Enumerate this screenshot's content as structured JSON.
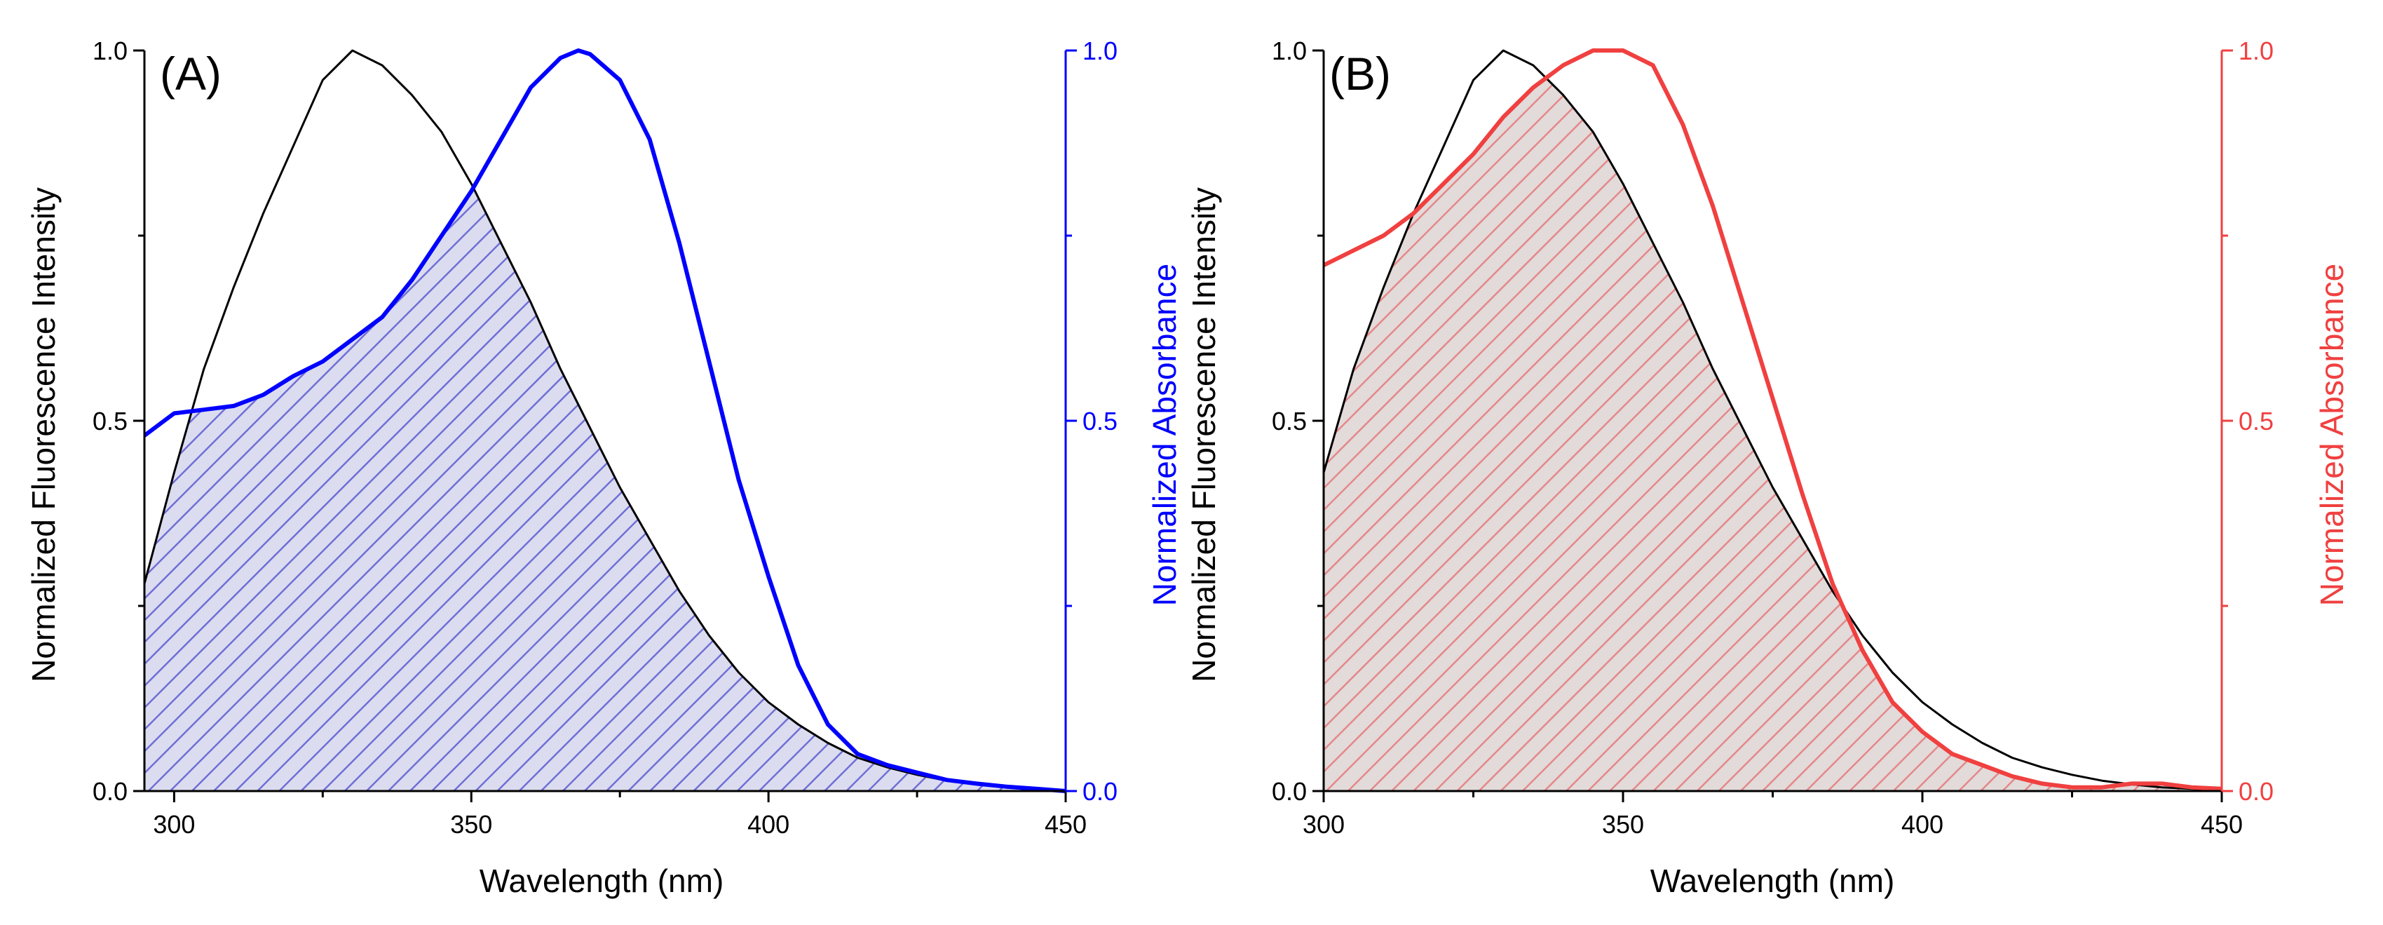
{
  "chart_data": [
    {
      "type": "line",
      "panel_label": "(A)",
      "xlabel": "Wavelength  (nm)",
      "ylabel_left": "Normalized Fluorescence Intensity",
      "ylabel_right": "Normalized Absorbance",
      "xlim": [
        295,
        450
      ],
      "ylim": [
        0,
        1
      ],
      "xticks": [
        300,
        350,
        400,
        450
      ],
      "yticks": [
        0.0,
        0.5,
        1.0
      ],
      "ytick_labels": [
        "0.0",
        "0.5",
        "1.0"
      ],
      "grid": false,
      "accent_color": "#0000ff",
      "fill_color": "#dcdcf0",
      "hatch_color": "#6f6fd6",
      "series": [
        {
          "name": "Fluorescence",
          "axis": "left",
          "color": "#000000",
          "x": [
            295,
            300,
            305,
            310,
            315,
            320,
            325,
            330,
            335,
            340,
            345,
            350,
            355,
            360,
            365,
            370,
            375,
            380,
            385,
            390,
            395,
            400,
            405,
            410,
            415,
            420,
            425,
            430,
            435,
            440,
            445,
            450
          ],
          "y": [
            0.28,
            0.43,
            0.57,
            0.68,
            0.78,
            0.87,
            0.96,
            1.0,
            0.98,
            0.94,
            0.89,
            0.82,
            0.74,
            0.66,
            0.57,
            0.49,
            0.41,
            0.34,
            0.27,
            0.21,
            0.16,
            0.12,
            0.09,
            0.065,
            0.045,
            0.032,
            0.022,
            0.014,
            0.009,
            0.005,
            0.003,
            0.001
          ]
        },
        {
          "name": "Absorbance",
          "axis": "right",
          "color": "#0000ff",
          "x": [
            295,
            300,
            305,
            310,
            315,
            320,
            325,
            330,
            335,
            340,
            345,
            350,
            355,
            360,
            365,
            368,
            370,
            375,
            380,
            385,
            390,
            395,
            400,
            405,
            410,
            415,
            420,
            425,
            430,
            435,
            440,
            445,
            450
          ],
          "y": [
            0.48,
            0.51,
            0.515,
            0.52,
            0.535,
            0.56,
            0.58,
            0.61,
            0.64,
            0.69,
            0.75,
            0.81,
            0.88,
            0.95,
            0.99,
            1.0,
            0.995,
            0.96,
            0.88,
            0.74,
            0.58,
            0.42,
            0.29,
            0.17,
            0.09,
            0.05,
            0.035,
            0.025,
            0.015,
            0.01,
            0.006,
            0.003,
            0.0
          ]
        }
      ]
    },
    {
      "type": "line",
      "panel_label": "(B)",
      "xlabel": "Wavelength  (nm)",
      "ylabel_left": "Normalized Fluorescence Intensity",
      "ylabel_right": "Normalized Absorbance",
      "xlim": [
        300,
        450
      ],
      "ylim": [
        0,
        1
      ],
      "xticks": [
        300,
        350,
        400,
        450
      ],
      "yticks": [
        0.0,
        0.5,
        1.0
      ],
      "ytick_labels": [
        "0.0",
        "0.5",
        "1.0"
      ],
      "grid": false,
      "accent_color": "#f04040",
      "fill_color": "#e3dada",
      "hatch_color": "#e48888",
      "series": [
        {
          "name": "Fluorescence",
          "axis": "left",
          "color": "#000000",
          "x": [
            300,
            305,
            310,
            315,
            320,
            325,
            330,
            335,
            340,
            345,
            350,
            355,
            360,
            365,
            370,
            375,
            380,
            385,
            390,
            395,
            400,
            405,
            410,
            415,
            420,
            425,
            430,
            435,
            440,
            445,
            450
          ],
          "y": [
            0.43,
            0.57,
            0.68,
            0.78,
            0.87,
            0.96,
            1.0,
            0.98,
            0.94,
            0.89,
            0.82,
            0.74,
            0.66,
            0.57,
            0.49,
            0.41,
            0.34,
            0.27,
            0.21,
            0.16,
            0.12,
            0.09,
            0.065,
            0.045,
            0.032,
            0.022,
            0.014,
            0.009,
            0.005,
            0.003,
            0.001
          ]
        },
        {
          "name": "Absorbance",
          "axis": "right",
          "color": "#f04040",
          "x": [
            300,
            305,
            310,
            315,
            320,
            325,
            330,
            335,
            340,
            345,
            350,
            355,
            360,
            365,
            370,
            375,
            380,
            385,
            390,
            395,
            400,
            405,
            410,
            415,
            420,
            425,
            430,
            435,
            440,
            445,
            450
          ],
          "y": [
            0.71,
            0.73,
            0.75,
            0.78,
            0.82,
            0.86,
            0.91,
            0.95,
            0.98,
            1.0,
            1.0,
            0.98,
            0.9,
            0.79,
            0.66,
            0.53,
            0.4,
            0.28,
            0.19,
            0.12,
            0.08,
            0.05,
            0.035,
            0.02,
            0.01,
            0.005,
            0.005,
            0.01,
            0.01,
            0.005,
            0.003
          ]
        }
      ]
    }
  ]
}
